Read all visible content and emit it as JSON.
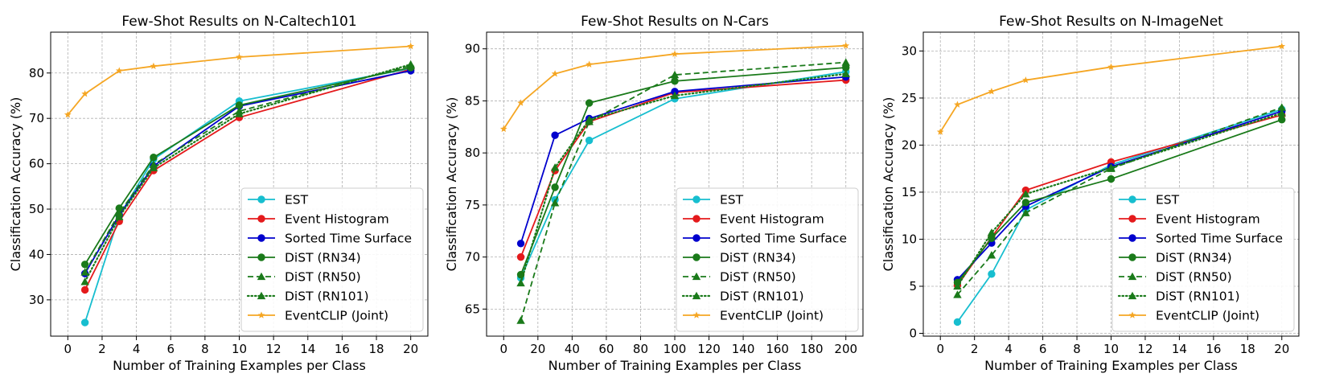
{
  "chart_data": [
    {
      "type": "line",
      "title": "Few-Shot Results on N-Caltech101",
      "xlabel": "Number of Training Examples per Class",
      "ylabel": "Classification Accuracy (%)",
      "xlim": [
        -1,
        21
      ],
      "ylim": [
        22,
        89
      ],
      "xticks": [
        0,
        2,
        4,
        6,
        8,
        10,
        12,
        14,
        16,
        18,
        20
      ],
      "yticks": [
        30,
        40,
        50,
        60,
        70,
        80
      ],
      "grid": true,
      "legend": "lower-right",
      "x": [
        1,
        3,
        5,
        10,
        20
      ],
      "series": [
        {
          "name": "EST",
          "x": [
            1,
            3,
            5,
            10,
            20
          ],
          "values": [
            25.0,
            48.5,
            61.0,
            73.8,
            81.0
          ]
        },
        {
          "name": "Event Histogram",
          "x": [
            1,
            3,
            5,
            10,
            20
          ],
          "values": [
            32.2,
            47.3,
            58.5,
            70.2,
            80.8
          ]
        },
        {
          "name": "Sorted Time Surface",
          "x": [
            1,
            3,
            5,
            10,
            20
          ],
          "values": [
            35.8,
            48.7,
            59.5,
            72.7,
            80.5
          ]
        },
        {
          "name": "DiST (RN34)",
          "x": [
            1,
            3,
            5,
            10,
            20
          ],
          "values": [
            37.8,
            50.2,
            61.4,
            72.9,
            81.2
          ]
        },
        {
          "name": "DiST (RN50)",
          "x": [
            1,
            3,
            5,
            10,
            20
          ],
          "values": [
            36.1,
            49.1,
            59.8,
            71.6,
            81.6
          ]
        },
        {
          "name": "DiST (RN101)",
          "x": [
            1,
            3,
            5,
            10,
            20
          ],
          "values": [
            34.0,
            48.3,
            59.1,
            71.0,
            81.9
          ]
        },
        {
          "name": "EventCLIP (Joint)",
          "x": [
            0,
            1,
            3,
            5,
            10,
            20
          ],
          "values": [
            70.8,
            75.4,
            80.5,
            81.5,
            83.5,
            85.9
          ]
        }
      ]
    },
    {
      "type": "line",
      "title": "Few-Shot Results on N-Cars",
      "xlabel": "Number of Training Examples per Class",
      "ylabel": "Classification Accuracy (%)",
      "xlim": [
        -10,
        210
      ],
      "ylim": [
        62.4,
        91.6
      ],
      "xticks": [
        0,
        20,
        40,
        60,
        80,
        100,
        120,
        140,
        160,
        180,
        200
      ],
      "yticks": [
        65,
        70,
        75,
        80,
        85,
        90
      ],
      "grid": true,
      "legend": "lower-right",
      "x": [
        10,
        30,
        50,
        100,
        200
      ],
      "series": [
        {
          "name": "EST",
          "x": [
            10,
            30,
            50,
            100,
            200
          ],
          "values": [
            68.0,
            75.5,
            81.2,
            85.2,
            87.8
          ]
        },
        {
          "name": "Event Histogram",
          "x": [
            10,
            30,
            50,
            100,
            200
          ],
          "values": [
            70.0,
            78.3,
            83.0,
            85.8,
            87.0
          ]
        },
        {
          "name": "Sorted Time Surface",
          "x": [
            10,
            30,
            50,
            100,
            200
          ],
          "values": [
            71.3,
            81.7,
            83.3,
            85.9,
            87.3
          ]
        },
        {
          "name": "DiST (RN34)",
          "x": [
            10,
            30,
            50,
            100,
            200
          ],
          "values": [
            68.3,
            76.7,
            84.8,
            86.9,
            88.2
          ]
        },
        {
          "name": "DiST (RN50)",
          "x": [
            10,
            30,
            50,
            100,
            200
          ],
          "values": [
            63.9,
            75.2,
            83.0,
            87.5,
            88.7
          ]
        },
        {
          "name": "DiST (RN101)",
          "x": [
            10,
            30,
            50,
            100,
            200
          ],
          "values": [
            67.5,
            78.6,
            83.2,
            85.5,
            87.6
          ]
        },
        {
          "name": "EventCLIP (Joint)",
          "x": [
            0,
            10,
            30,
            50,
            100,
            200
          ],
          "values": [
            82.3,
            84.8,
            87.6,
            88.5,
            89.5,
            90.3
          ]
        }
      ]
    },
    {
      "type": "line",
      "title": "Few-Shot Results on N-ImageNet",
      "xlabel": "Number of Training Examples per Class",
      "ylabel": "Classification Accuracy (%)",
      "xlim": [
        -1,
        21
      ],
      "ylim": [
        -0.3,
        32.0
      ],
      "xticks": [
        0,
        2,
        4,
        6,
        8,
        10,
        12,
        14,
        16,
        18,
        20
      ],
      "yticks": [
        0,
        5,
        10,
        15,
        20,
        25,
        30
      ],
      "grid": true,
      "legend": "lower-right",
      "x": [
        1,
        3,
        5,
        10,
        20
      ],
      "series": [
        {
          "name": "EST",
          "x": [
            1,
            3,
            5,
            10,
            20
          ],
          "values": [
            1.2,
            6.3,
            13.1,
            17.9,
            23.8
          ]
        },
        {
          "name": "Event Histogram",
          "x": [
            1,
            3,
            5,
            10,
            20
          ],
          "values": [
            5.1,
            10.2,
            15.2,
            18.2,
            23.2
          ]
        },
        {
          "name": "Sorted Time Surface",
          "x": [
            1,
            3,
            5,
            10,
            20
          ],
          "values": [
            5.7,
            9.6,
            13.5,
            17.7,
            23.6
          ]
        },
        {
          "name": "DiST (RN34)",
          "x": [
            1,
            3,
            5,
            10,
            20
          ],
          "values": [
            5.4,
            10.1,
            13.9,
            16.4,
            22.7
          ]
        },
        {
          "name": "DiST (RN50)",
          "x": [
            1,
            3,
            5,
            10,
            20
          ],
          "values": [
            4.1,
            8.3,
            12.8,
            17.5,
            24.0
          ]
        },
        {
          "name": "DiST (RN101)",
          "x": [
            1,
            3,
            5,
            10,
            20
          ],
          "values": [
            5.0,
            10.7,
            14.8,
            17.6,
            23.4
          ]
        },
        {
          "name": "EventCLIP (Joint)",
          "x": [
            0,
            1,
            3,
            5,
            10,
            20
          ],
          "values": [
            21.4,
            24.3,
            25.7,
            26.9,
            28.3,
            30.5
          ]
        }
      ]
    }
  ],
  "series_styles": [
    {
      "name": "EST",
      "color": "#17becf",
      "dash": "solid",
      "marker": "circle"
    },
    {
      "name": "Event Histogram",
      "color": "#e41a1c",
      "dash": "solid",
      "marker": "circle"
    },
    {
      "name": "Sorted Time Surface",
      "color": "#0000cd",
      "dash": "solid",
      "marker": "circle"
    },
    {
      "name": "DiST (RN34)",
      "color": "#1a7a1a",
      "dash": "solid",
      "marker": "circle"
    },
    {
      "name": "DiST (RN50)",
      "color": "#1a7a1a",
      "dash": "dashed",
      "marker": "triangle"
    },
    {
      "name": "DiST (RN101)",
      "color": "#1a7a1a",
      "dash": "dotted",
      "marker": "triangle"
    },
    {
      "name": "EventCLIP (Joint)",
      "color": "#f5a623",
      "dash": "solid",
      "marker": "star"
    }
  ]
}
